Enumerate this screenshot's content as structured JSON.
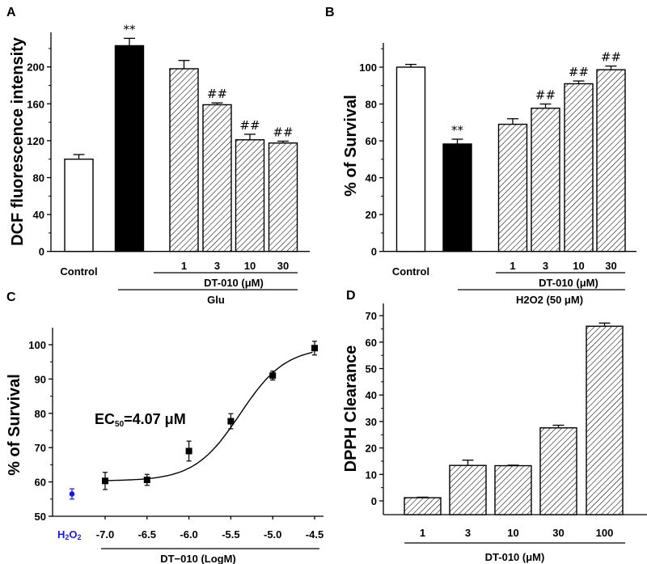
{
  "panels": {
    "A": "A",
    "B": "B",
    "C": "C",
    "D": "D"
  },
  "chart_data": [
    {
      "panel": "A",
      "type": "bar",
      "ylabel": "DCF fluorescence intensity",
      "ylim": [
        0,
        237
      ],
      "yticks": [
        0,
        40,
        80,
        120,
        160,
        200
      ],
      "categories": [
        "Control",
        "",
        "1",
        "3",
        "10",
        "30"
      ],
      "values": [
        100,
        223,
        198,
        159,
        121,
        117.5
      ],
      "errors": [
        5,
        8,
        9,
        2,
        6,
        2
      ],
      "fills": [
        "white",
        "black",
        "hatch",
        "hatch",
        "hatch",
        "hatch"
      ],
      "annotations": [
        "",
        "**",
        "",
        "##",
        "##",
        "##"
      ],
      "group_labels": [
        "DT-010 (μM)",
        "Glu"
      ]
    },
    {
      "panel": "B",
      "type": "bar",
      "ylabel": "% of Survival",
      "ylim": [
        0,
        113
      ],
      "yticks": [
        0,
        20,
        40,
        60,
        80,
        100
      ],
      "categories": [
        "Control",
        "",
        "1",
        "3",
        "10",
        "30"
      ],
      "values": [
        100,
        58.3,
        69,
        77.7,
        91,
        98.6
      ],
      "errors": [
        1.5,
        2.6,
        3,
        2.3,
        1.5,
        2
      ],
      "fills": [
        "white",
        "black",
        "hatch",
        "hatch",
        "hatch",
        "hatch"
      ],
      "annotations": [
        "",
        "**",
        "",
        "##",
        "##",
        "##"
      ],
      "group_labels": [
        "DT-010 (μM)",
        "H2O2 (50 μM)"
      ]
    },
    {
      "panel": "C",
      "type": "scatter",
      "ylabel": "% of Survival",
      "xlabel": "DT−010   (LogM)",
      "ylim": [
        50,
        103
      ],
      "xlim": [
        -7.0,
        -4.5
      ],
      "yticks": [
        50,
        60,
        70,
        80,
        90,
        100
      ],
      "xticks": [
        "-7.0",
        "-6.5",
        "-6.0",
        "-5.5",
        "-5.0",
        "-4.5"
      ],
      "control": {
        "label_main": "H",
        "label_sub1": "2",
        "label_mid": "O",
        "label_sub2": "2",
        "y": 56.5,
        "error": 1.5,
        "color": "#1a1adb"
      },
      "x": [
        -7.0,
        -6.5,
        -6.0,
        -5.5,
        -5.0,
        -4.5
      ],
      "y": [
        60.3,
        60.6,
        69.0,
        77.7,
        91.0,
        99.0
      ],
      "errors": [
        2.5,
        1.6,
        2.9,
        2.2,
        1.3,
        2.0
      ],
      "fit": {
        "bottom": 60.3,
        "top": 99.3,
        "logEC50": -5.39,
        "hill": 1.6
      },
      "annotation": {
        "prefix": "EC",
        "sub": "50",
        "suffix": "=4.07 μM"
      }
    },
    {
      "panel": "D",
      "type": "bar",
      "ylabel": "DPPH Clearance",
      "xlabel": "DT-010 (μM)",
      "ylim": [
        -5,
        73
      ],
      "yticks": [
        0,
        10,
        20,
        30,
        40,
        50,
        60,
        70
      ],
      "categories": [
        "1",
        "3",
        "10",
        "30",
        "100"
      ],
      "values": [
        1.2,
        13.4,
        13.3,
        27.6,
        66.0
      ],
      "errors": [
        0.2,
        2.0,
        0.2,
        1.0,
        1.2
      ],
      "fills": [
        "hatch",
        "hatch",
        "hatch",
        "hatch",
        "hatch"
      ]
    }
  ]
}
